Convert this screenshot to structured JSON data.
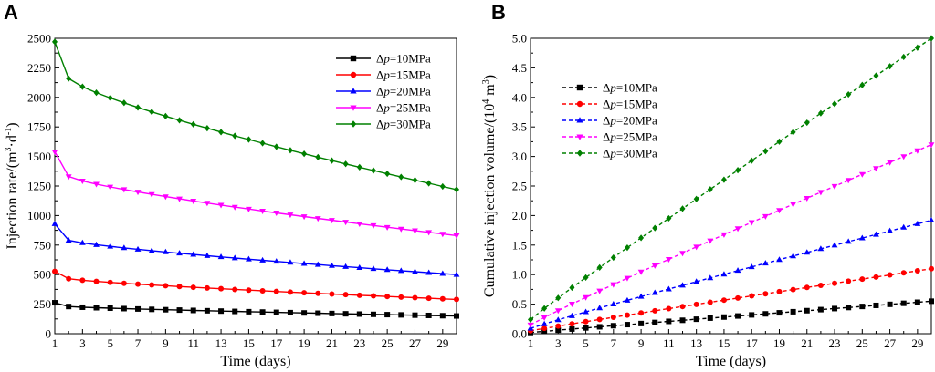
{
  "chart_data": [
    {
      "panel": "A",
      "type": "line",
      "xlabel": "Time (days)",
      "ylabel": "Injection rate/(m3·d-1)",
      "ylabel_parts": {
        "base": "Injection rate/(m",
        "sup1": "3",
        "mid": "·d",
        "sup2": "-1",
        "end": ")"
      },
      "xlim": [
        1,
        30
      ],
      "ylim": [
        0,
        2500
      ],
      "xticks": [
        1,
        3,
        5,
        7,
        9,
        11,
        13,
        15,
        17,
        19,
        21,
        23,
        25,
        27,
        29
      ],
      "yticks": [
        0,
        250,
        500,
        750,
        1000,
        1250,
        1500,
        1750,
        2000,
        2250,
        2500
      ],
      "ytick_labels": [
        "0",
        "250",
        "500",
        "750",
        "1000",
        "1250",
        "1500",
        "1750",
        "2000",
        "2250",
        "2500"
      ],
      "line_style": "solid",
      "legend_position": "top-right",
      "series": [
        {
          "name": "Δp=10MPa",
          "delta": "Δ",
          "p": "p",
          "rest": "=10MPa",
          "color": "#000000",
          "marker": "square",
          "start": 262,
          "end": 150,
          "kind": "decay",
          "knee": 230
        },
        {
          "name": "Δp=15MPa",
          "delta": "Δ",
          "p": "p",
          "rest": "=15MPa",
          "color": "#ff0000",
          "marker": "circle",
          "start": 528,
          "end": 290,
          "kind": "decay",
          "knee": 465
        },
        {
          "name": "Δp=20MPa",
          "delta": "Δ",
          "p": "p",
          "rest": "=20MPa",
          "color": "#0000ff",
          "marker": "triangle-up",
          "start": 930,
          "end": 500,
          "kind": "decay",
          "knee": 790
        },
        {
          "name": "Δp=25MPa",
          "delta": "Δ",
          "p": "p",
          "rest": "=25MPa",
          "color": "#ff00ff",
          "marker": "triangle-down",
          "start": 1540,
          "end": 830,
          "kind": "decay",
          "knee": 1330
        },
        {
          "name": "Δp=30MPa",
          "delta": "Δ",
          "p": "p",
          "rest": "=30MPa",
          "color": "#008000",
          "marker": "diamond",
          "start": 2470,
          "end": 1220,
          "kind": "decay",
          "knee": 2160
        }
      ]
    },
    {
      "panel": "B",
      "type": "line",
      "xlabel": "Time (days)",
      "ylabel": "Cumulative injection volume/(104 m3)",
      "ylabel_parts": {
        "base": "Cumulative injection volume/(10",
        "sup1": "4",
        "mid": " m",
        "sup2": "3",
        "end": ")"
      },
      "xlim": [
        1,
        30
      ],
      "ylim": [
        0,
        5.0
      ],
      "xticks": [
        1,
        3,
        5,
        7,
        9,
        11,
        13,
        15,
        17,
        19,
        21,
        23,
        25,
        27,
        29
      ],
      "yticks": [
        0,
        0.5,
        1.0,
        1.5,
        2.0,
        2.5,
        3.0,
        3.5,
        4.0,
        4.5,
        5.0
      ],
      "ytick_labels": [
        "0.0",
        "0.5",
        "1.0",
        "1.5",
        "2.0",
        "2.5",
        "3.0",
        "3.5",
        "4.0",
        "4.5",
        "5.0"
      ],
      "line_style": "dashed",
      "legend_position": "top-left",
      "series": [
        {
          "name": "Δp=10MPa",
          "delta": "Δ",
          "p": "p",
          "rest": "=10MPa",
          "color": "#000000",
          "marker": "square",
          "start": 0.02,
          "end": 0.55,
          "kind": "grow",
          "exp": 0.97
        },
        {
          "name": "Δp=15MPa",
          "delta": "Δ",
          "p": "p",
          "rest": "=15MPa",
          "color": "#ff0000",
          "marker": "circle",
          "start": 0.05,
          "end": 1.1,
          "kind": "grow",
          "exp": 0.97
        },
        {
          "name": "Δp=20MPa",
          "delta": "Δ",
          "p": "p",
          "rest": "=20MPa",
          "color": "#0000ff",
          "marker": "triangle-up",
          "start": 0.09,
          "end": 1.92,
          "kind": "grow",
          "exp": 0.95
        },
        {
          "name": "Δp=25MPa",
          "delta": "Δ",
          "p": "p",
          "rest": "=25MPa",
          "color": "#ff00ff",
          "marker": "triangle-down",
          "start": 0.15,
          "end": 3.2,
          "kind": "grow",
          "exp": 0.95
        },
        {
          "name": "Δp=30MPa",
          "delta": "Δ",
          "p": "p",
          "rest": "=30MPa",
          "color": "#008000",
          "marker": "diamond",
          "start": 0.24,
          "end": 5.0,
          "kind": "grow",
          "exp": 0.96
        }
      ]
    }
  ]
}
